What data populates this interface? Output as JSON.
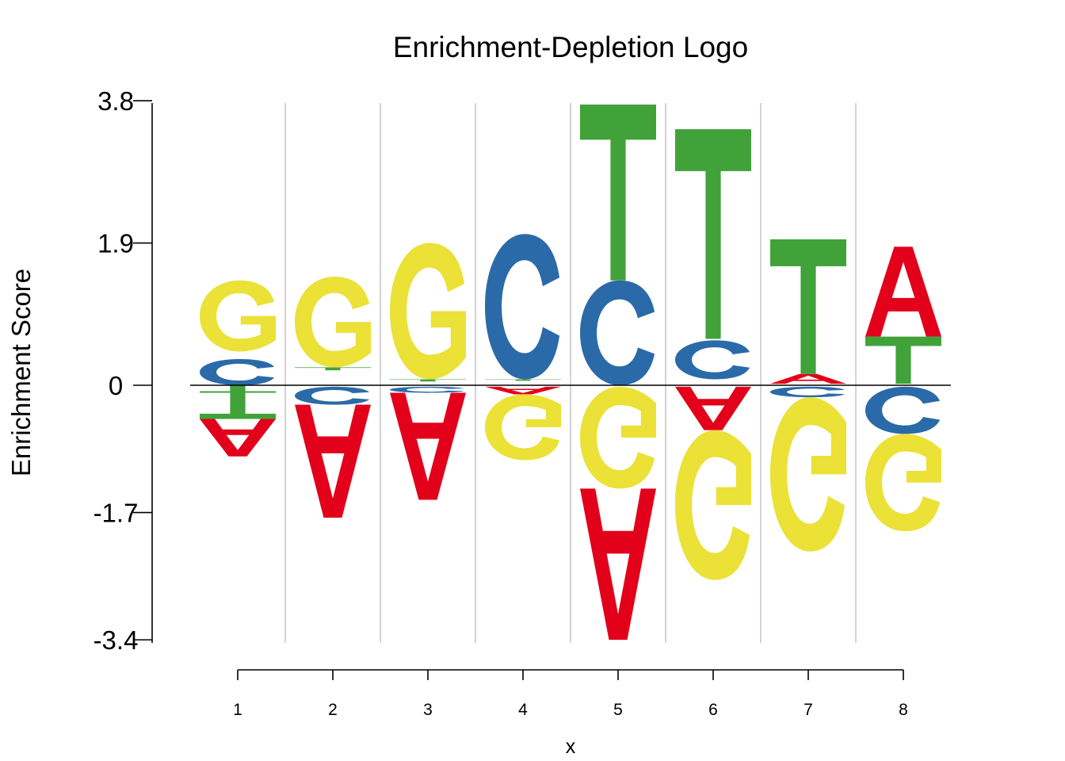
{
  "chart_data": {
    "type": "sequence-logo",
    "title": "Enrichment-Depletion Logo",
    "xlabel": "x",
    "ylabel": "Enrichment Score",
    "ylim": [
      -3.4,
      3.8
    ],
    "yticks": [
      "3.8",
      "1.9",
      "0",
      "-1.7",
      "-3.4"
    ],
    "ytick_values": [
      3.8,
      1.9,
      0,
      -1.7,
      -3.4
    ],
    "categories": [
      "1",
      "2",
      "3",
      "4",
      "5",
      "6",
      "7",
      "8"
    ],
    "colors": {
      "A": "#e2001a",
      "C": "#2b6aa8",
      "G": "#ebe137",
      "T": "#41a23a"
    },
    "grid": "vertical separators",
    "positions": [
      {
        "x": "1",
        "letters": [
          {
            "base": "C",
            "from": 0.0,
            "to": 0.35
          },
          {
            "base": "G",
            "from": 0.45,
            "to": 1.4
          },
          {
            "base": "T",
            "from": -0.1,
            "to": 0.0
          },
          {
            "base": "T",
            "from": -0.45,
            "to": -0.1
          },
          {
            "base": "A",
            "from": -0.95,
            "to": -0.45
          }
        ]
      },
      {
        "x": "2",
        "letters": [
          {
            "base": "T",
            "from": 0.2,
            "to": 0.24
          },
          {
            "base": "G",
            "from": 0.24,
            "to": 1.45
          },
          {
            "base": "C",
            "from": -0.26,
            "to": -0.02
          },
          {
            "base": "A",
            "from": -1.77,
            "to": -0.26
          }
        ]
      },
      {
        "x": "3",
        "letters": [
          {
            "base": "T",
            "from": 0.05,
            "to": 0.08
          },
          {
            "base": "G",
            "from": 0.08,
            "to": 1.9
          },
          {
            "base": "C",
            "from": -0.1,
            "to": -0.02
          },
          {
            "base": "A",
            "from": -1.53,
            "to": -0.1
          }
        ]
      },
      {
        "x": "4",
        "letters": [
          {
            "base": "T",
            "from": 0.06,
            "to": 0.08
          },
          {
            "base": "C",
            "from": 0.08,
            "to": 2.02
          },
          {
            "base": "A",
            "from": -0.12,
            "to": -0.02
          },
          {
            "base": "G",
            "from": -1.0,
            "to": -0.12
          }
        ]
      },
      {
        "x": "5",
        "letters": [
          {
            "base": "C",
            "from": 0.0,
            "to": 1.4
          },
          {
            "base": "T",
            "from": 1.4,
            "to": 3.75
          },
          {
            "base": "G",
            "from": -1.38,
            "to": -0.02
          },
          {
            "base": "A",
            "from": -3.4,
            "to": -1.38
          }
        ]
      },
      {
        "x": "6",
        "letters": [
          {
            "base": "C",
            "from": 0.08,
            "to": 0.6
          },
          {
            "base": "T",
            "from": 0.62,
            "to": 3.42
          },
          {
            "base": "A",
            "from": -0.6,
            "to": -0.02
          },
          {
            "base": "G",
            "from": -2.6,
            "to": -0.6
          }
        ]
      },
      {
        "x": "7",
        "letters": [
          {
            "base": "A",
            "from": 0.02,
            "to": 0.15
          },
          {
            "base": "T",
            "from": 0.15,
            "to": 1.95
          },
          {
            "base": "C",
            "from": -0.16,
            "to": -0.02
          },
          {
            "base": "G",
            "from": -2.22,
            "to": -0.16
          }
        ]
      },
      {
        "x": "8",
        "letters": [
          {
            "base": "T",
            "from": 0.02,
            "to": 0.65
          },
          {
            "base": "A",
            "from": 0.65,
            "to": 1.85
          },
          {
            "base": "C",
            "from": -0.65,
            "to": -0.02
          },
          {
            "base": "G",
            "from": -1.95,
            "to": -0.65
          }
        ]
      }
    ]
  }
}
